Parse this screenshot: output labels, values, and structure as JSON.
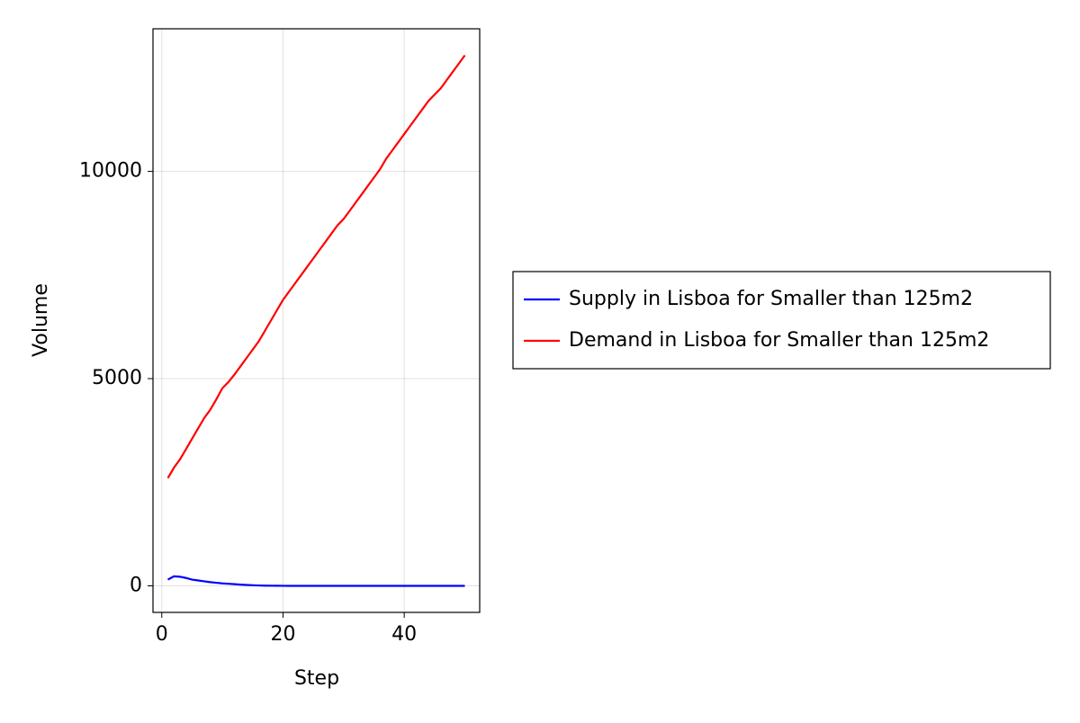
{
  "chart_data": {
    "type": "line",
    "x_label": "Step",
    "y_label": "Volume",
    "x": [
      1,
      2,
      3,
      4,
      5,
      6,
      7,
      8,
      9,
      10,
      11,
      12,
      13,
      14,
      15,
      16,
      17,
      18,
      19,
      20,
      21,
      22,
      23,
      24,
      25,
      26,
      27,
      28,
      29,
      30,
      31,
      32,
      33,
      34,
      35,
      36,
      37,
      38,
      39,
      40,
      41,
      42,
      43,
      44,
      45,
      46,
      47,
      48,
      49,
      50
    ],
    "series": [
      {
        "name": "Supply in Lisboa for Smaller than 125m2",
        "color": "#0000ff",
        "values": [
          150,
          230,
          220,
          190,
          150,
          130,
          110,
          90,
          75,
          60,
          50,
          40,
          30,
          22,
          15,
          10,
          6,
          4,
          2,
          1,
          0,
          0,
          0,
          0,
          0,
          0,
          0,
          0,
          0,
          0,
          0,
          0,
          0,
          0,
          0,
          0,
          0,
          0,
          0,
          0,
          0,
          0,
          0,
          0,
          0,
          0,
          0,
          0,
          0,
          0
        ]
      },
      {
        "name": "Demand in Lisboa for Smaller than 125m2",
        "color": "#ff0000",
        "values": [
          2600,
          2850,
          3050,
          3300,
          3550,
          3800,
          4050,
          4250,
          4500,
          4770,
          4920,
          5100,
          5300,
          5500,
          5700,
          5900,
          6150,
          6400,
          6650,
          6900,
          7100,
          7300,
          7500,
          7700,
          7900,
          8100,
          8300,
          8500,
          8700,
          8850,
          9050,
          9250,
          9450,
          9650,
          9850,
          10050,
          10300,
          10500,
          10700,
          10900,
          11100,
          11300,
          11500,
          11700,
          11850,
          12000,
          12200,
          12400,
          12600,
          12800
        ]
      }
    ],
    "xlim": [
      -1.45,
      52.45
    ],
    "ylim": [
      -640,
      13440
    ],
    "xticks": [
      0,
      20,
      40
    ],
    "yticks": [
      0,
      5000,
      10000
    ],
    "grid": true,
    "legend": "right"
  }
}
